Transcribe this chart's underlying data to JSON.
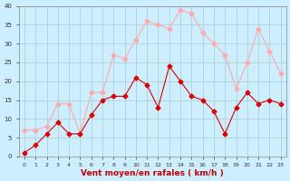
{
  "hours": [
    0,
    1,
    2,
    3,
    4,
    5,
    6,
    7,
    8,
    9,
    10,
    11,
    12,
    13,
    14,
    15,
    16,
    17,
    18,
    19,
    20,
    21,
    22,
    23
  ],
  "wind_avg": [
    1,
    3,
    6,
    9,
    6,
    6,
    11,
    15,
    16,
    16,
    21,
    19,
    13,
    24,
    20,
    16,
    15,
    12,
    6,
    13,
    17,
    14,
    15,
    14
  ],
  "wind_gust": [
    7,
    7,
    8,
    14,
    14,
    6,
    17,
    17,
    27,
    26,
    31,
    36,
    35,
    34,
    39,
    38,
    33,
    30,
    27,
    18,
    25,
    34,
    28,
    22
  ],
  "color_avg": "#dd0000",
  "color_gust": "#ffaaaa",
  "bg_color": "#cceeff",
  "grid_color": "#aacccc",
  "xlabel": "Vent moyen/en rafales ( km/h )",
  "xlabel_color": "#cc0000",
  "ylim": [
    0,
    40
  ],
  "yticks": [
    0,
    5,
    10,
    15,
    20,
    25,
    30,
    35,
    40
  ]
}
